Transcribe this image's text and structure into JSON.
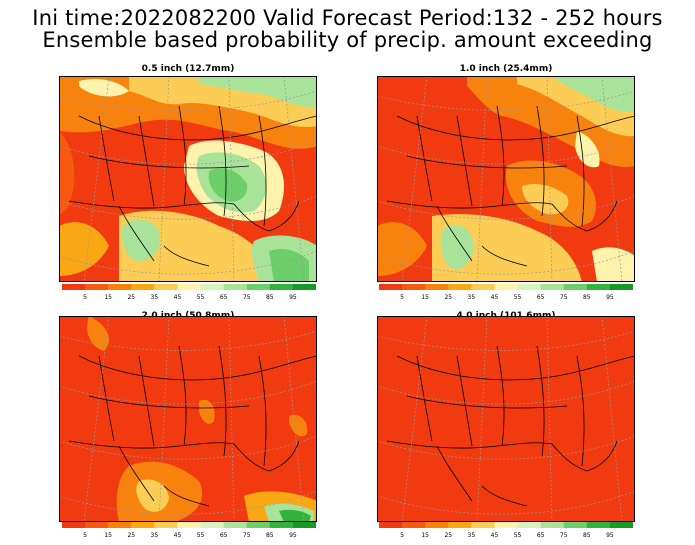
{
  "header": {
    "line1": "Ini time:2022082200  Valid Forecast Period:132 - 252 hours",
    "line2": "Ensemble based probability of precip. amount exceeding"
  },
  "panels": [
    {
      "id": "p05",
      "title": "0.5 inch (12.7mm)"
    },
    {
      "id": "p10",
      "title": "1.0 inch (25.4mm)"
    },
    {
      "id": "p20",
      "title": "2.0 inch (50.8mm)"
    },
    {
      "id": "p40",
      "title": "4.0 inch (101.6mm)"
    }
  ],
  "colorbar": {
    "labels": [
      "5",
      "15",
      "25",
      "35",
      "45",
      "55",
      "65",
      "75",
      "85",
      "95"
    ],
    "colors": [
      "#f23a10",
      "#f55a0e",
      "#f7830e",
      "#f9a814",
      "#fbcd55",
      "#fdf3ad",
      "#d9f2c0",
      "#a9e39a",
      "#6ccf6a",
      "#30b43c",
      "#159a25"
    ]
  }
}
